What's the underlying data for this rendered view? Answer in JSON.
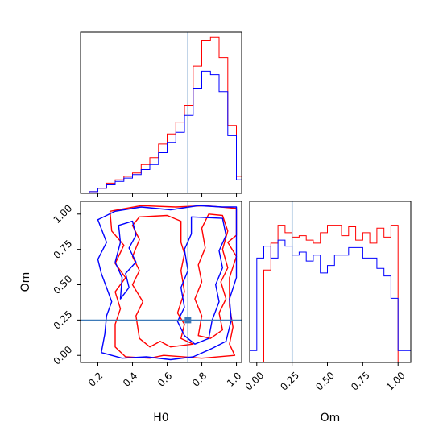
{
  "chart_data": [
    {
      "panel": "H0 marginal",
      "type": "line",
      "xlabel": "",
      "ylabel": "",
      "xlim": [
        0.1,
        1.03
      ],
      "x_bin_edges": [
        0.1,
        0.15,
        0.2,
        0.25,
        0.3,
        0.35,
        0.4,
        0.45,
        0.5,
        0.55,
        0.6,
        0.65,
        0.7,
        0.75,
        0.8,
        0.85,
        0.9,
        0.95,
        1.0,
        1.03
      ],
      "series": [
        {
          "color": "#ff0000",
          "values": [
            0.0,
            0.01,
            0.03,
            0.06,
            0.08,
            0.1,
            0.12,
            0.17,
            0.21,
            0.29,
            0.35,
            0.42,
            0.52,
            0.75,
            0.9,
            0.92,
            0.8,
            0.4,
            0.1
          ]
        },
        {
          "color": "#0000ff",
          "values": [
            0.0,
            0.01,
            0.03,
            0.05,
            0.07,
            0.09,
            0.11,
            0.14,
            0.17,
            0.24,
            0.3,
            0.36,
            0.46,
            0.62,
            0.72,
            0.7,
            0.6,
            0.34,
            0.08
          ]
        }
      ],
      "truth_x": 0.72
    },
    {
      "panel": "H0 vs Om joint",
      "type": "line",
      "xlabel": "H0",
      "ylabel": "Om",
      "xlim": [
        0.1,
        1.03
      ],
      "ylim": [
        -0.05,
        1.09
      ],
      "xticks": [
        "0.2",
        "0.4",
        "0.6",
        "0.8",
        "1.0"
      ],
      "yticks": [
        "0.00",
        "0.25",
        "0.50",
        "0.75",
        "1.00"
      ],
      "truth": [
        0.72,
        0.25
      ],
      "contours": [
        {
          "color": "#ff0000",
          "points": [
            [
              0.27,
              1.02
            ],
            [
              0.45,
              1.06
            ],
            [
              0.65,
              1.05
            ],
            [
              0.82,
              1.06
            ],
            [
              1.0,
              1.04
            ],
            [
              1.0,
              0.85
            ],
            [
              0.95,
              0.8
            ],
            [
              1.0,
              0.7
            ],
            [
              0.96,
              0.55
            ],
            [
              0.96,
              0.35
            ],
            [
              0.98,
              0.2
            ],
            [
              0.96,
              0.08
            ],
            [
              0.99,
              0.0
            ],
            [
              0.8,
              -0.02
            ],
            [
              0.58,
              0.0
            ],
            [
              0.5,
              -0.02
            ],
            [
              0.36,
              -0.01
            ],
            [
              0.3,
              0.06
            ],
            [
              0.3,
              0.22
            ],
            [
              0.33,
              0.33
            ],
            [
              0.3,
              0.45
            ],
            [
              0.36,
              0.55
            ],
            [
              0.3,
              0.65
            ],
            [
              0.35,
              0.78
            ],
            [
              0.28,
              0.88
            ],
            [
              0.27,
              1.02
            ]
          ]
        },
        {
          "color": "#ff0000",
          "points": [
            [
              0.44,
              0.98
            ],
            [
              0.6,
              0.99
            ],
            [
              0.68,
              0.95
            ],
            [
              0.68,
              0.8
            ],
            [
              0.7,
              0.72
            ],
            [
              0.68,
              0.6
            ],
            [
              0.7,
              0.45
            ],
            [
              0.66,
              0.3
            ],
            [
              0.7,
              0.22
            ],
            [
              0.68,
              0.12
            ],
            [
              0.75,
              0.08
            ],
            [
              0.62,
              0.06
            ],
            [
              0.56,
              0.1
            ],
            [
              0.5,
              0.06
            ],
            [
              0.44,
              0.12
            ],
            [
              0.42,
              0.28
            ],
            [
              0.46,
              0.38
            ],
            [
              0.4,
              0.5
            ],
            [
              0.44,
              0.6
            ],
            [
              0.4,
              0.7
            ],
            [
              0.44,
              0.82
            ],
            [
              0.4,
              0.92
            ],
            [
              0.44,
              0.98
            ]
          ]
        },
        {
          "color": "#ff0000",
          "points": [
            [
              0.84,
              1.0
            ],
            [
              0.92,
              0.99
            ],
            [
              0.95,
              0.88
            ],
            [
              0.92,
              0.75
            ],
            [
              0.95,
              0.62
            ],
            [
              0.91,
              0.52
            ],
            [
              0.94,
              0.4
            ],
            [
              0.9,
              0.3
            ],
            [
              0.92,
              0.18
            ],
            [
              0.85,
              0.12
            ],
            [
              0.78,
              0.14
            ],
            [
              0.8,
              0.28
            ],
            [
              0.76,
              0.4
            ],
            [
              0.8,
              0.52
            ],
            [
              0.78,
              0.64
            ],
            [
              0.82,
              0.76
            ],
            [
              0.8,
              0.9
            ],
            [
              0.84,
              1.0
            ]
          ]
        },
        {
          "color": "#0000ff",
          "points": [
            [
              0.2,
              0.96
            ],
            [
              0.3,
              1.02
            ],
            [
              0.45,
              1.05
            ],
            [
              0.62,
              1.03
            ],
            [
              0.78,
              1.06
            ],
            [
              0.92,
              1.05
            ],
            [
              1.0,
              1.05
            ],
            [
              1.0,
              0.55
            ],
            [
              0.96,
              0.4
            ],
            [
              0.97,
              0.25
            ],
            [
              0.94,
              0.1
            ],
            [
              0.86,
              0.05
            ],
            [
              0.75,
              -0.01
            ],
            [
              0.62,
              -0.03
            ],
            [
              0.48,
              -0.01
            ],
            [
              0.34,
              -0.02
            ],
            [
              0.22,
              0.02
            ],
            [
              0.24,
              0.15
            ],
            [
              0.25,
              0.28
            ],
            [
              0.28,
              0.38
            ],
            [
              0.25,
              0.48
            ],
            [
              0.22,
              0.58
            ],
            [
              0.2,
              0.68
            ],
            [
              0.25,
              0.8
            ],
            [
              0.2,
              0.96
            ]
          ]
        },
        {
          "color": "#0000ff",
          "points": [
            [
              0.74,
              0.98
            ],
            [
              0.92,
              0.97
            ],
            [
              0.94,
              0.85
            ],
            [
              0.9,
              0.74
            ],
            [
              0.92,
              0.62
            ],
            [
              0.88,
              0.5
            ],
            [
              0.9,
              0.38
            ],
            [
              0.86,
              0.25
            ],
            [
              0.84,
              0.12
            ],
            [
              0.76,
              0.08
            ],
            [
              0.7,
              0.14
            ],
            [
              0.66,
              0.24
            ],
            [
              0.7,
              0.34
            ],
            [
              0.68,
              0.48
            ],
            [
              0.72,
              0.6
            ],
            [
              0.7,
              0.75
            ],
            [
              0.74,
              0.86
            ],
            [
              0.74,
              0.98
            ]
          ]
        },
        {
          "color": "#0000ff",
          "points": [
            [
              0.32,
              0.92
            ],
            [
              0.4,
              0.95
            ],
            [
              0.42,
              0.85
            ],
            [
              0.38,
              0.76
            ],
            [
              0.42,
              0.66
            ],
            [
              0.36,
              0.58
            ],
            [
              0.38,
              0.48
            ],
            [
              0.33,
              0.4
            ],
            [
              0.34,
              0.55
            ],
            [
              0.3,
              0.66
            ],
            [
              0.33,
              0.8
            ],
            [
              0.32,
              0.92
            ]
          ]
        }
      ]
    },
    {
      "panel": "Om marginal",
      "type": "line",
      "xlabel": "Om",
      "ylabel": "",
      "xlim": [
        -0.05,
        1.09
      ],
      "xticks": [
        "0.00",
        "0.25",
        "0.50",
        "0.75",
        "1.00"
      ],
      "x_bin_edges": [
        -0.05,
        0.0,
        0.05,
        0.1,
        0.15,
        0.2,
        0.25,
        0.3,
        0.35,
        0.4,
        0.45,
        0.5,
        0.55,
        0.6,
        0.65,
        0.7,
        0.75,
        0.8,
        0.85,
        0.9,
        0.95,
        1.0,
        1.05,
        1.09
      ],
      "series": [
        {
          "color": "#ff0000",
          "values": [
            0.0,
            0.0,
            0.62,
            0.8,
            0.92,
            0.87,
            0.84,
            0.85,
            0.82,
            0.8,
            0.87,
            0.92,
            0.92,
            0.85,
            0.91,
            0.82,
            0.87,
            0.8,
            0.9,
            0.84,
            0.92,
            0.0,
            0.0
          ]
        },
        {
          "color": "#0000ff",
          "values": [
            0.08,
            0.7,
            0.78,
            0.7,
            0.82,
            0.78,
            0.72,
            0.74,
            0.68,
            0.72,
            0.6,
            0.65,
            0.72,
            0.72,
            0.77,
            0.77,
            0.7,
            0.7,
            0.63,
            0.58,
            0.43,
            0.08,
            0.08
          ]
        }
      ],
      "truth_x": 0.25
    }
  ]
}
